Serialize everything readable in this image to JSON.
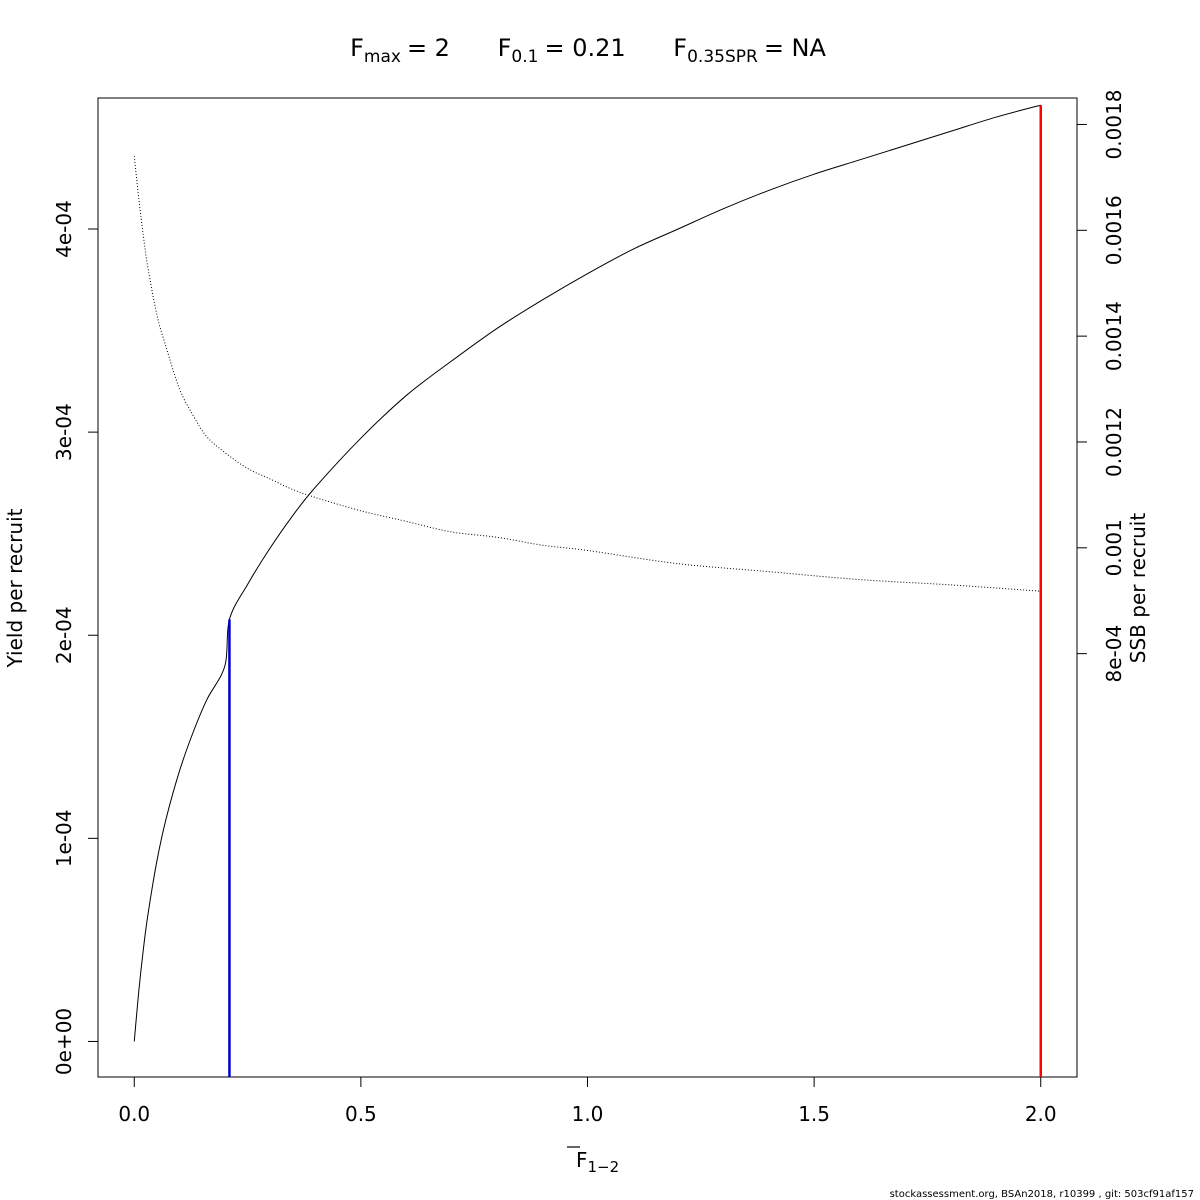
{
  "title": {
    "fmax": {
      "base": "F",
      "sub": "max",
      "value": "= 2"
    },
    "f01": {
      "base": "F",
      "sub": "0.1",
      "value": "= 0.21"
    },
    "fspr": {
      "base": "F",
      "sub": "0.35SPR",
      "value": "= NA"
    }
  },
  "footer": "stockassessment.org, BSAn2018, r10399 , git: 503cf91af157",
  "chart_data": {
    "type": "line",
    "xlabel": {
      "base": "F",
      "sub": "1−2",
      "overline": true
    },
    "ylabel": "Yield per recruit",
    "y2label": "SSB per recruit",
    "xlim": [
      -0.08,
      2.08
    ],
    "ylim": [
      -1.75e-05,
      0.0004645
    ],
    "y2lim": [
      0.0,
      0.00185
    ],
    "x_ticks": [
      0.0,
      0.5,
      1.0,
      1.5,
      2.0
    ],
    "x_tick_labels": [
      "0.0",
      "0.5",
      "1.0",
      "1.5",
      "2.0"
    ],
    "y_ticks": [
      0,
      0.0001,
      0.0002,
      0.0003,
      0.0004
    ],
    "y_tick_labels": [
      "0e+00",
      "1e-04",
      "2e-04",
      "3e-04",
      "4e-04"
    ],
    "y2_ticks": [
      0.0008,
      0.001,
      0.0012,
      0.0014,
      0.0016,
      0.0018
    ],
    "y2_tick_labels": [
      "8e-04",
      "0.001",
      "0.0012",
      "0.0014",
      "0.0016",
      "0.0018"
    ],
    "grid": false,
    "series": [
      {
        "axis": "left",
        "style": "solid",
        "color": "#000000",
        "x": [
          0,
          0.01,
          0.02,
          0.03,
          0.05,
          0.07,
          0.1,
          0.13,
          0.16,
          0.2,
          0.21,
          0.25,
          0.3,
          0.35,
          0.4,
          0.5,
          0.6,
          0.7,
          0.8,
          0.9,
          1.0,
          1.1,
          1.2,
          1.3,
          1.4,
          1.5,
          1.6,
          1.7,
          1.8,
          1.9,
          2.0
        ],
        "y": [
          0,
          2.48e-05,
          4.52e-05,
          6.22e-05,
          8.89e-05,
          0.0001094,
          0.0001333,
          0.0001523,
          0.0001682,
          0.000185,
          0.0002078,
          0.000225,
          0.000243,
          0.000259,
          0.000273,
          0.000297,
          0.000318,
          0.000335,
          0.000351,
          0.000365,
          0.000378,
          0.00039,
          0.0004,
          0.00041,
          0.000419,
          0.000427,
          0.000434,
          0.000441,
          0.000448,
          0.000455,
          0.000461
        ]
      },
      {
        "axis": "right",
        "style": "dotted",
        "color": "#000000",
        "x": [
          0,
          0.01,
          0.02,
          0.03,
          0.05,
          0.07,
          0.1,
          0.13,
          0.16,
          0.2,
          0.25,
          0.3,
          0.35,
          0.4,
          0.5,
          0.6,
          0.7,
          0.8,
          0.9,
          1.0,
          1.2,
          1.4,
          1.6,
          1.8,
          2.0
        ],
        "y": [
          0.00174,
          0.00166,
          0.00159,
          0.00153,
          0.00144,
          0.00138,
          0.0013,
          0.00125,
          0.00121,
          0.00118,
          0.00115,
          0.00113,
          0.00111,
          0.001095,
          0.00107,
          0.00105,
          0.00103,
          0.00102,
          0.001005,
          0.000995,
          0.00097,
          0.000955,
          0.00094,
          0.00093,
          0.000918
        ]
      }
    ],
    "reference_lines": [
      {
        "name": "F0.1",
        "x": 0.21,
        "y": 0.0002078,
        "color": "#0000cc"
      },
      {
        "name": "Fmax",
        "x": 2.0,
        "y": 0.000461,
        "color": "#ff0000"
      }
    ]
  }
}
